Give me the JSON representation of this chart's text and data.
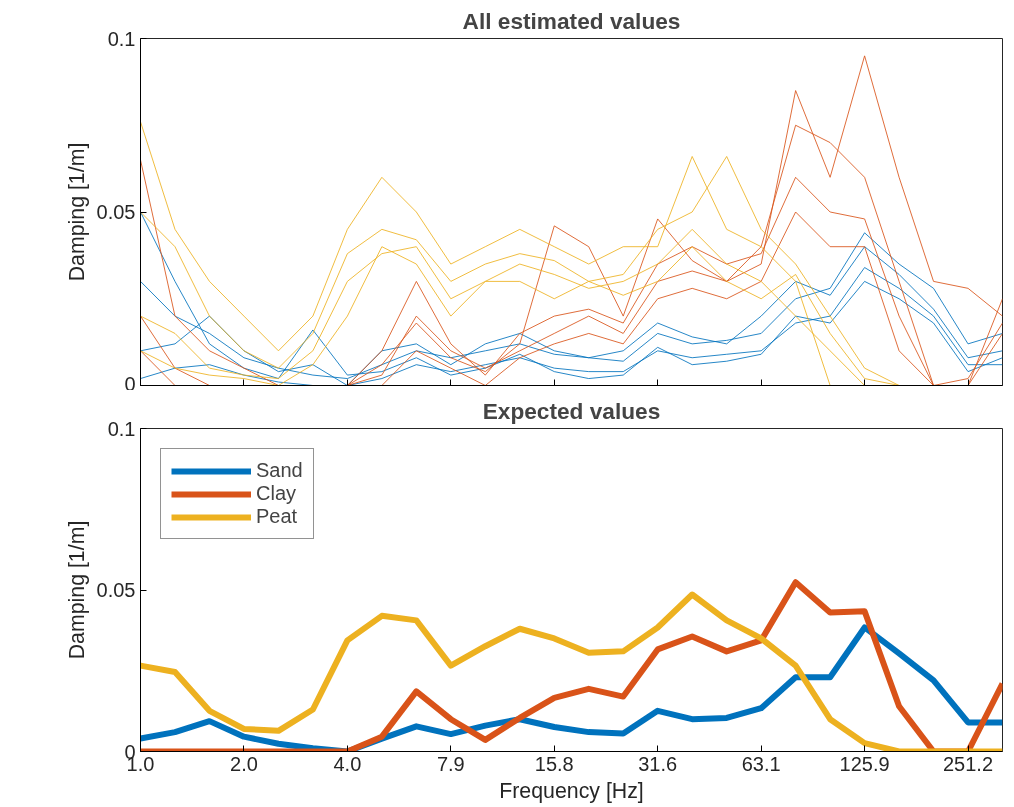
{
  "chart_data": [
    {
      "type": "line",
      "title": "All estimated values",
      "ylabel": "Damping [1/m]",
      "log": "x",
      "grid": false,
      "legend": false,
      "tick_labels": "y",
      "x": [
        1.0,
        1.259,
        1.585,
        1.995,
        2.512,
        3.162,
        3.981,
        5.012,
        6.31,
        7.943,
        10.0,
        12.59,
        15.85,
        19.95,
        25.12,
        31.62,
        39.81,
        50.12,
        63.1,
        79.43,
        100.0,
        125.9,
        158.5,
        199.5,
        251.2,
        316.2
      ],
      "xlim": [
        1.0,
        316.2
      ],
      "xticks": [
        {
          "value": 1.0,
          "label": null
        },
        {
          "value": 1.995,
          "label": null
        },
        {
          "value": 3.981,
          "label": null
        },
        {
          "value": 7.943,
          "label": null
        },
        {
          "value": 15.85,
          "label": null
        },
        {
          "value": 31.62,
          "label": null
        },
        {
          "value": 63.1,
          "label": null
        },
        {
          "value": 125.9,
          "label": null
        },
        {
          "value": 251.2,
          "label": null
        }
      ],
      "ylim": [
        0,
        0.1
      ],
      "yticks": [
        0,
        0.05,
        0.1
      ],
      "series": [
        {
          "color": "#0072bd",
          "values": [
            0.03,
            0.02,
            0.015,
            0.008,
            0.005,
            0.003,
            0.002,
            0.006,
            0.01,
            0.008,
            0.01,
            0.012,
            0.009,
            0.008,
            0.007,
            0.015,
            0.012,
            0.013,
            0.015,
            0.025,
            0.028,
            0.044,
            0.035,
            0.028,
            0.012,
            0.015
          ]
        },
        {
          "color": "#0072bd",
          "values": [
            0.01,
            0.012,
            0.02,
            0.01,
            0.004,
            0.006,
            0.0,
            0.01,
            0.012,
            0.006,
            0.012,
            0.015,
            0.01,
            0.008,
            0.01,
            0.018,
            0.014,
            0.012,
            0.02,
            0.03,
            0.026,
            0.04,
            0.032,
            0.022,
            0.008,
            0.01
          ]
        },
        {
          "color": "#0072bd",
          "values": [
            0.002,
            0.005,
            0.006,
            0.003,
            0.001,
            0.0,
            0.0,
            0.002,
            0.006,
            0.004,
            0.006,
            0.008,
            0.005,
            0.004,
            0.004,
            0.01,
            0.008,
            0.009,
            0.01,
            0.018,
            0.02,
            0.034,
            0.028,
            0.02,
            0.006,
            0.006
          ]
        },
        {
          "color": "#0072bd",
          "values": [
            0.05,
            0.03,
            0.012,
            0.005,
            0.002,
            0.016,
            0.003,
            0.004,
            0.008,
            0.003,
            0.005,
            0.009,
            0.004,
            0.002,
            0.003,
            0.011,
            0.006,
            0.007,
            0.009,
            0.02,
            0.018,
            0.03,
            0.025,
            0.018,
            0.004,
            0.008
          ]
        },
        {
          "color": "#d95319",
          "values": [
            0.065,
            0.02,
            0.01,
            0.005,
            0.0,
            0.0,
            0.0,
            0.01,
            0.03,
            0.012,
            0.003,
            0.015,
            0.02,
            0.022,
            0.018,
            0.035,
            0.04,
            0.035,
            0.038,
            0.06,
            0.05,
            0.048,
            0.02,
            0.0,
            0.0,
            0.025
          ]
        },
        {
          "color": "#d95319",
          "values": [
            0.02,
            0.005,
            0.0,
            0.0,
            0.0,
            0.0,
            0.0,
            0.003,
            0.02,
            0.01,
            0.005,
            0.01,
            0.015,
            0.02,
            0.015,
            0.03,
            0.033,
            0.03,
            0.035,
            0.085,
            0.06,
            0.095,
            0.06,
            0.03,
            0.028,
            0.02
          ]
        },
        {
          "color": "#d95319",
          "values": [
            0.01,
            0.0,
            0.0,
            0.0,
            0.0,
            0.0,
            0.0,
            0.0,
            0.01,
            0.005,
            0.0,
            0.008,
            0.012,
            0.015,
            0.012,
            0.025,
            0.028,
            0.025,
            0.03,
            0.05,
            0.04,
            0.04,
            0.01,
            0.0,
            0.0,
            0.015
          ]
        },
        {
          "color": "#d95319",
          "values": [
            0.0,
            0.0,
            0.0,
            0.0,
            0.0,
            0.0,
            0.0,
            0.006,
            0.018,
            0.008,
            0.004,
            0.012,
            0.046,
            0.04,
            0.02,
            0.048,
            0.036,
            0.03,
            0.04,
            0.075,
            0.07,
            0.06,
            0.03,
            0.0,
            0.002,
            0.018
          ]
        },
        {
          "color": "#edb120",
          "values": [
            0.076,
            0.045,
            0.03,
            0.02,
            0.01,
            0.02,
            0.045,
            0.06,
            0.05,
            0.035,
            0.04,
            0.045,
            0.04,
            0.035,
            0.04,
            0.04,
            0.066,
            0.045,
            0.04,
            0.03,
            0.0,
            0.0,
            0.0,
            0.0,
            null,
            null
          ]
        },
        {
          "color": "#edb120",
          "values": [
            0.05,
            0.04,
            0.02,
            0.01,
            0.005,
            0.015,
            0.038,
            0.045,
            0.042,
            0.03,
            0.035,
            0.038,
            0.036,
            0.03,
            0.032,
            0.045,
            0.05,
            0.066,
            0.045,
            0.035,
            0.02,
            0.005,
            0.0,
            0.0,
            null,
            null
          ]
        },
        {
          "color": "#edb120",
          "values": [
            0.02,
            0.015,
            0.005,
            0.003,
            0.002,
            0.01,
            0.03,
            0.038,
            0.04,
            0.025,
            0.03,
            0.035,
            0.032,
            0.028,
            0.03,
            0.035,
            0.045,
            0.035,
            0.03,
            0.02,
            0.01,
            0.0,
            0.0,
            0.0,
            null,
            null
          ]
        },
        {
          "color": "#edb120",
          "values": [
            0.01,
            0.005,
            0.003,
            0.002,
            0.0,
            0.006,
            0.02,
            0.04,
            0.035,
            0.02,
            0.03,
            0.03,
            0.025,
            0.03,
            0.026,
            0.03,
            0.04,
            0.03,
            0.025,
            0.032,
            0.015,
            0.002,
            0.0,
            0.0,
            null,
            null
          ]
        }
      ]
    },
    {
      "type": "line",
      "title": "Expected values",
      "xlabel": "Frequency [Hz]",
      "ylabel": "Damping [1/m]",
      "log": "x",
      "grid": false,
      "legend": "top left",
      "x": [
        1.0,
        1.259,
        1.585,
        1.995,
        2.512,
        3.162,
        3.981,
        5.012,
        6.31,
        7.943,
        10.0,
        12.59,
        15.85,
        19.95,
        25.12,
        31.62,
        39.81,
        50.12,
        63.1,
        79.43,
        100.0,
        125.9,
        158.5,
        199.5,
        251.2,
        316.2
      ],
      "xlim": [
        1.0,
        316.2
      ],
      "xticks": [
        {
          "value": 1.0,
          "label": "1.0"
        },
        {
          "value": 1.995,
          "label": "2.0"
        },
        {
          "value": 3.981,
          "label": "4.0"
        },
        {
          "value": 7.943,
          "label": "7.9"
        },
        {
          "value": 15.85,
          "label": "15.8"
        },
        {
          "value": 31.62,
          "label": "31.6"
        },
        {
          "value": 63.1,
          "label": "63.1"
        },
        {
          "value": 125.9,
          "label": "125.9"
        },
        {
          "value": 251.2,
          "label": "251.2"
        }
      ],
      "ylim": [
        0,
        0.1
      ],
      "yticks": [
        0,
        0.05,
        0.1
      ],
      "series": [
        {
          "name": "Sand",
          "color": "#0072bd",
          "values": [
            0.004,
            0.006,
            0.0094,
            0.0046,
            0.0024,
            0.001,
            0.0,
            0.004,
            0.0078,
            0.0054,
            0.008,
            0.01,
            0.0076,
            0.006,
            0.0056,
            0.0126,
            0.01,
            0.0104,
            0.0134,
            0.023,
            0.023,
            0.0384,
            0.0304,
            0.022,
            0.009,
            0.009
          ]
        },
        {
          "name": "Clay",
          "color": "#d95319",
          "values": [
            0.0,
            0.0,
            0.0,
            0.0,
            0.0,
            0.0,
            0.0,
            0.0046,
            0.0186,
            0.01,
            0.0036,
            0.0104,
            0.0166,
            0.0194,
            0.017,
            0.0316,
            0.0356,
            0.031,
            0.0344,
            0.0524,
            0.043,
            0.0434,
            0.014,
            0.0,
            0.0,
            0.021
          ]
        },
        {
          "name": "Peat",
          "color": "#edb120",
          "values": [
            0.0266,
            0.0246,
            0.0126,
            0.007,
            0.0064,
            0.013,
            0.0344,
            0.042,
            0.0406,
            0.0266,
            0.0326,
            0.038,
            0.035,
            0.0306,
            0.031,
            0.0384,
            0.0486,
            0.0406,
            0.035,
            0.0266,
            0.01,
            0.0026,
            0.0,
            0.0,
            0.0,
            0.0
          ]
        }
      ]
    }
  ]
}
